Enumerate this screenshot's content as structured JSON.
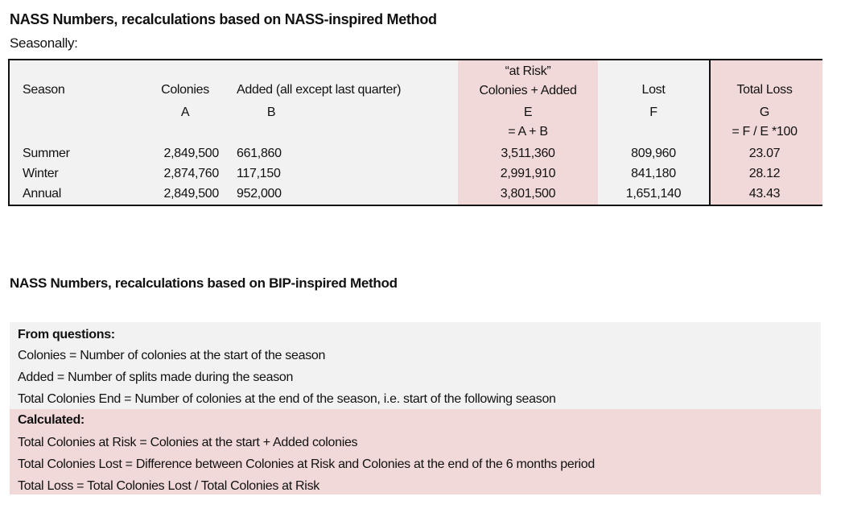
{
  "section1": {
    "title": "NASS Numbers, recalculations based on NASS-inspired Method",
    "subtitle": "Seasonally:"
  },
  "table": {
    "headers": {
      "season": "Season",
      "colonies": "Colonies",
      "added": "Added (all except last quarter)",
      "at_risk_top": "“at Risk”",
      "at_risk": "Colonies + Added",
      "lost": "Lost",
      "total_loss": "Total Loss"
    },
    "letters": {
      "a": "A",
      "b": "B",
      "e": "E",
      "f": "F",
      "g": "G"
    },
    "formulas": {
      "e": "= A + B",
      "g": "= F / E *100"
    },
    "rows": [
      {
        "season": "Summer",
        "a": "2,849,500",
        "b": "661,860",
        "e": "3,511,360",
        "f": "809,960",
        "g": "23.07"
      },
      {
        "season": "Winter",
        "a": "2,874,760",
        "b": "117,150",
        "e": "2,991,910",
        "f": "841,180",
        "g": "28.12"
      },
      {
        "season": "Annual",
        "a": "2,849,500",
        "b": "952,000",
        "e": "3,801,500",
        "f": "1,651,140",
        "g": "43.43"
      }
    ]
  },
  "section2": {
    "title": "NASS Numbers, recalculations based on BIP-inspired Method",
    "from_heading": "From questions:",
    "from_lines": [
      "Colonies = Number of colonies at the start of the season",
      "Added = Number of splits made during the season",
      "Total Colonies End = Number of colonies at the end of the season, i.e. start of the following season"
    ],
    "calc_heading": "Calculated:",
    "calc_lines": [
      "Total Colonies at Risk = Colonies at the start + Added colonies",
      "Total Colonies Lost = Difference between Colonies at Risk and Colonies at the end of the 6 months period",
      "Total Loss = Total Colonies Lost / Total Colonies at Risk"
    ]
  },
  "colors": {
    "grey": "#f2f2f2",
    "pink": "#f2d9d9"
  }
}
